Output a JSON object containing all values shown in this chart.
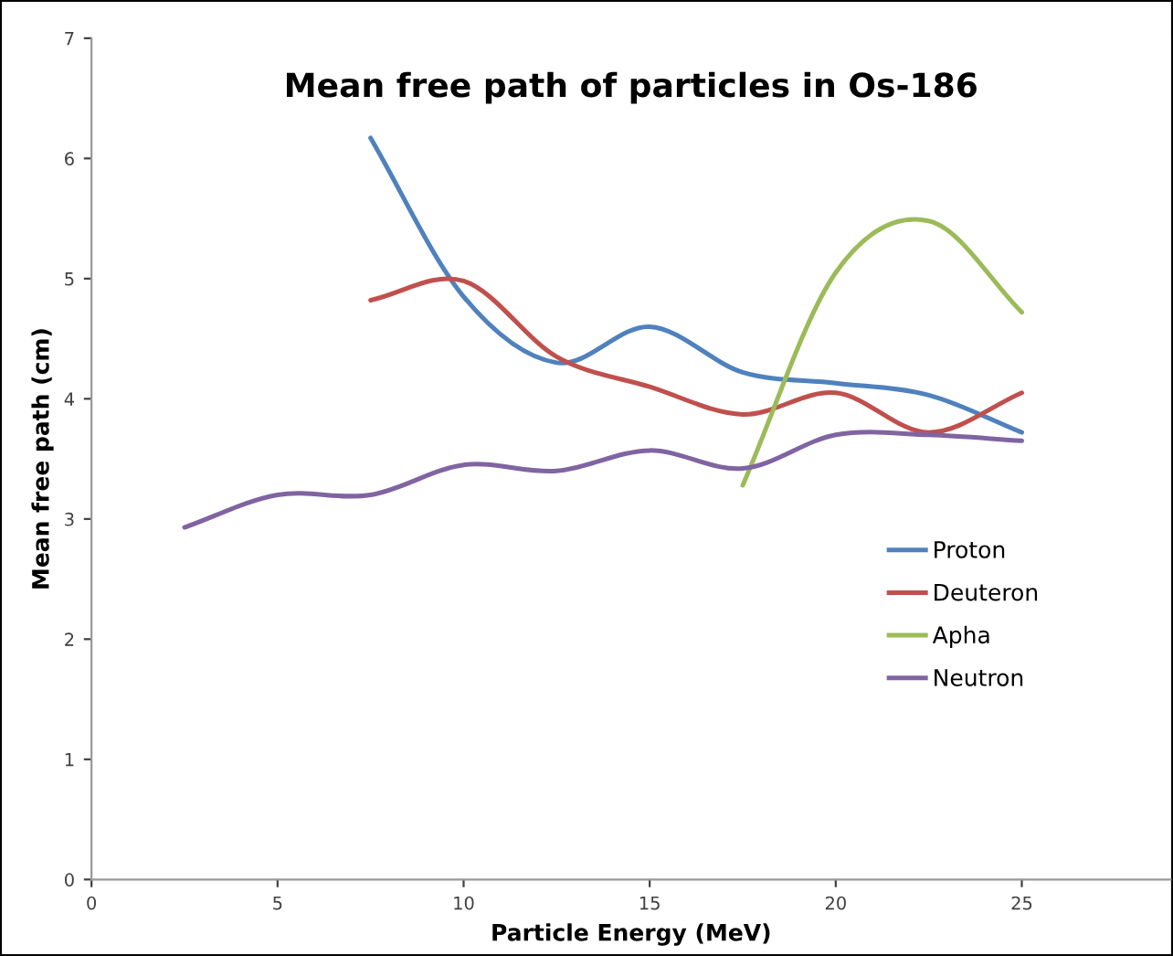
{
  "chart_data": {
    "type": "line",
    "title": "Mean free path of particles in Os-186",
    "xlabel": "Particle Energy (MeV)",
    "ylabel": "Mean free path (cm)",
    "xlim": [
      0,
      29
    ],
    "xticks": [
      0,
      5,
      10,
      15,
      20,
      25
    ],
    "ylim": [
      0,
      7
    ],
    "yticks": [
      0,
      1,
      2,
      3,
      4,
      5,
      6,
      7
    ],
    "grid": false,
    "legend": "right",
    "marker": "none",
    "line_style": "solid",
    "series": [
      {
        "name": "Proton",
        "color": "#4f81bd",
        "x": [
          7.5,
          10,
          12.5,
          15,
          17.5,
          20,
          22.5,
          25
        ],
        "values": [
          6.17,
          4.85,
          4.3,
          4.6,
          4.22,
          4.13,
          4.03,
          3.72
        ]
      },
      {
        "name": "Deuteron",
        "color": "#c0504d",
        "x": [
          7.5,
          10,
          12.5,
          15,
          17.5,
          20,
          22.5,
          25
        ],
        "values": [
          4.82,
          4.98,
          4.35,
          4.1,
          3.87,
          4.05,
          3.72,
          4.05
        ]
      },
      {
        "name": "Apha",
        "color": "#9bbb59",
        "x": [
          17.5,
          20,
          22.5,
          25
        ],
        "values": [
          3.28,
          5.05,
          5.48,
          4.72
        ]
      },
      {
        "name": "Neutron",
        "color": "#8064a2",
        "x": [
          2.5,
          5,
          7.5,
          10,
          12.5,
          15,
          17.5,
          20,
          22.5,
          25
        ],
        "values": [
          2.93,
          3.2,
          3.2,
          3.45,
          3.4,
          3.57,
          3.42,
          3.7,
          3.7,
          3.65
        ]
      }
    ]
  }
}
